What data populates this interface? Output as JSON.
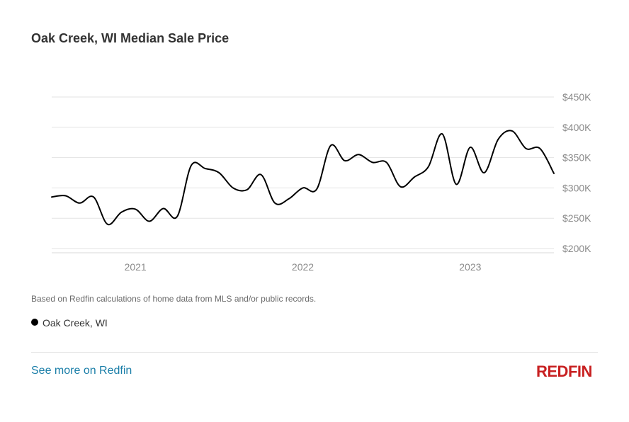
{
  "title": "Oak Creek, WI Median Sale Price",
  "note": "Based on Redfin calculations of home data from MLS and/or public records.",
  "legend": {
    "label": "Oak Creek, WI",
    "color": "#000000"
  },
  "footer": {
    "link_label": "See more on Redfin",
    "logo_text": "REDFIN",
    "logo_color": "#c82021",
    "link_color": "#1a7ea8"
  },
  "chart_data": {
    "type": "line",
    "title": "Oak Creek, WI Median Sale Price",
    "xlabel": "",
    "ylabel": "",
    "x_ticks": [
      "2021",
      "2022",
      "2023"
    ],
    "y_ticks": [
      "$450K",
      "$400K",
      "$350K",
      "$300K",
      "$250K",
      "$200K"
    ],
    "ylim": [
      195000,
      450000
    ],
    "grid": true,
    "series": [
      {
        "name": "Oak Creek, WI",
        "color": "#000000",
        "x": [
          "2020-07",
          "2020-08",
          "2020-09",
          "2020-10",
          "2020-11",
          "2020-12",
          "2021-01",
          "2021-02",
          "2021-03",
          "2021-04",
          "2021-05",
          "2021-06",
          "2021-07",
          "2021-08",
          "2021-09",
          "2021-10",
          "2021-11",
          "2021-12",
          "2022-01",
          "2022-02",
          "2022-03",
          "2022-04",
          "2022-05",
          "2022-06",
          "2022-07",
          "2022-08",
          "2022-09",
          "2022-10",
          "2022-11",
          "2022-12",
          "2023-01",
          "2023-02",
          "2023-03",
          "2023-04",
          "2023-05",
          "2023-06",
          "2023-07"
        ],
        "values": [
          285000,
          287000,
          275000,
          285000,
          240000,
          260000,
          265000,
          245000,
          266000,
          253000,
          337000,
          332000,
          325000,
          300000,
          297000,
          322000,
          275000,
          282000,
          300000,
          298000,
          370000,
          345000,
          355000,
          342000,
          342000,
          302000,
          318000,
          335000,
          389000,
          306000,
          367000,
          325000,
          380000,
          394000,
          365000,
          365000,
          324000
        ]
      }
    ]
  }
}
